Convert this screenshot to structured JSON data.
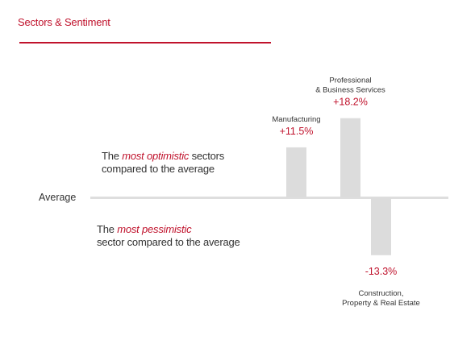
{
  "header": {
    "title": "Sectors & Sentiment"
  },
  "baseline": {
    "label": "Average"
  },
  "notes": {
    "optimistic": {
      "prefix": "The ",
      "highlight": "most optimistic",
      "suffix": " sectors",
      "line2": "compared to the average"
    },
    "pessimistic": {
      "prefix": "The ",
      "highlight": "most pessimistic",
      "line2": "sector compared to the average"
    }
  },
  "colors": {
    "accent": "#c0122c",
    "bar": "#dcdcdc",
    "baseline": "#dedede"
  },
  "chart_data": {
    "type": "bar",
    "title": "Sectors & Sentiment",
    "baseline_label": "Average",
    "categories": [
      [
        "Manufacturing"
      ],
      [
        "Professional",
        "& Business Services"
      ],
      [
        "Construction,",
        "Property & Real Estate"
      ]
    ],
    "values": [
      11.5,
      18.2,
      -13.3
    ],
    "value_labels": [
      "+11.5%",
      "+18.2%",
      "-13.3%"
    ],
    "unit": "%"
  }
}
